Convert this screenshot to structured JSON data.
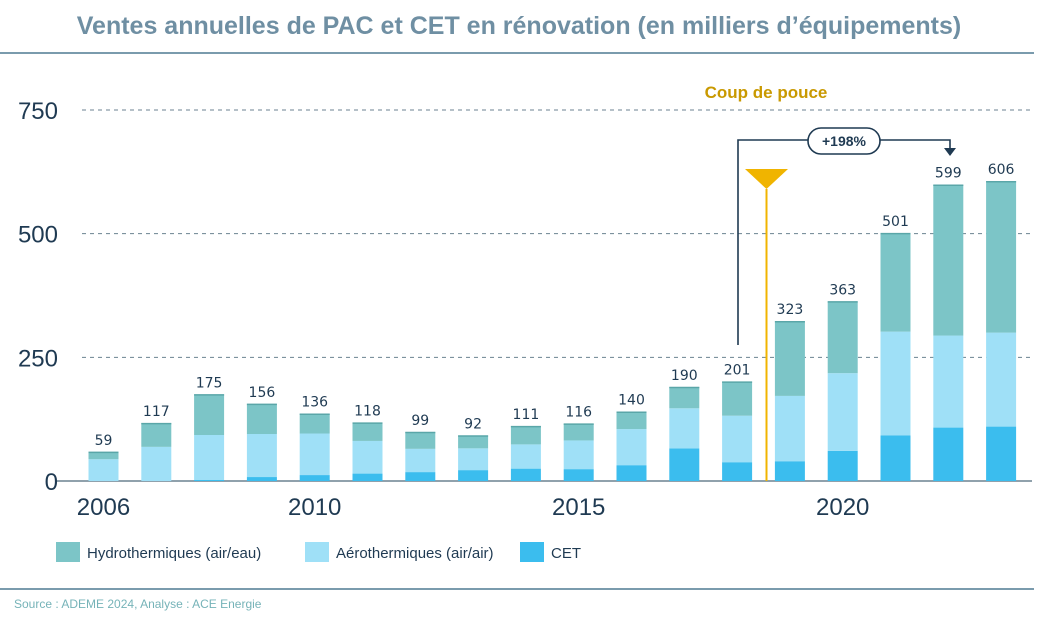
{
  "chart_data": {
    "type": "bar",
    "stacked": true,
    "title": "Ventes annuelles de PAC et CET en rénovation (en milliers d’équipements)",
    "categories": [
      "2006",
      "2007",
      "2008",
      "2009",
      "2010",
      "2011",
      "2012",
      "2013",
      "2014",
      "2015",
      "2016",
      "2017",
      "2018",
      "2019",
      "2020",
      "2021",
      "2022",
      "2023"
    ],
    "x_tick_labels": [
      "2006",
      "2010",
      "2015",
      "2020"
    ],
    "totals": [
      59,
      117,
      175,
      156,
      136,
      118,
      99,
      92,
      111,
      116,
      140,
      190,
      201,
      323,
      363,
      501,
      599,
      606
    ],
    "series": [
      {
        "name": "CET",
        "color": "#3bbdee",
        "values": [
          0,
          0,
          2,
          8,
          12,
          15,
          18,
          22,
          25,
          24,
          32,
          66,
          38,
          40,
          61,
          92,
          108,
          110
        ]
      },
      {
        "name": "Aérothermiques (air/air)",
        "color": "#9fe0f7",
        "values": [
          44,
          69,
          91,
          87,
          84,
          66,
          47,
          44,
          49,
          58,
          73,
          81,
          94,
          132,
          157,
          210,
          186,
          190
        ]
      },
      {
        "name": "Hydrothermiques (air/eau)",
        "color": "#7cc5c7",
        "values": [
          15,
          48,
          82,
          61,
          40,
          37,
          34,
          26,
          37,
          34,
          35,
          43,
          69,
          151,
          145,
          199,
          305,
          306
        ]
      }
    ],
    "legend_order": [
      "Hydrothermiques (air/eau)",
      "Aérothermiques (air/air)",
      "CET"
    ],
    "legend_position": "bottom-left",
    "ylim": [
      0,
      750
    ],
    "y_ticks": [
      0,
      250,
      500,
      750
    ],
    "grid": "dashed horizontal",
    "annotations": {
      "event_label": "Coup de pouce",
      "event_position": "between 2018 and 2019",
      "growth_label": "+198%",
      "growth_from": "2018",
      "growth_to": "2022"
    },
    "source": "Source : ADEME 2024, Analyse : ACE Energie"
  },
  "colors": {
    "title": "#6f8fa3",
    "axis_text": "#1f3a52",
    "grid": "#6b8291",
    "rule": "#4f7a92",
    "event": "#f0b400",
    "event_text": "#c99900",
    "annotation": "#1f3a52",
    "source": "#76b3b8"
  }
}
